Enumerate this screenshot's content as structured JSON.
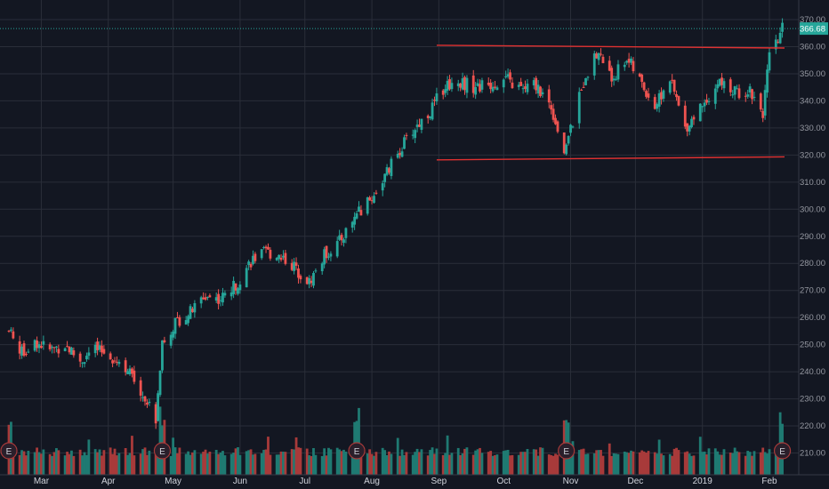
{
  "chart_data": {
    "type": "candlestick",
    "title": "",
    "xlabel": "",
    "ylabel": "",
    "grid": true,
    "ylim": [
      207,
      372
    ],
    "y_ticks": [
      "370.00",
      "360.00",
      "350.00",
      "340.00",
      "330.00",
      "320.00",
      "310.00",
      "300.00",
      "290.00",
      "280.00",
      "270.00",
      "260.00",
      "250.00",
      "240.00",
      "230.00",
      "220.00",
      "210.00"
    ],
    "x_ticks": [
      "Mar",
      "Apr",
      "May",
      "Jun",
      "Jul",
      "Aug",
      "Sep",
      "Oct",
      "Nov",
      "Dec",
      "2019",
      "Feb"
    ],
    "last_price": "366.68",
    "price_path": [
      [
        "2018-02-14",
        255
      ],
      [
        "2018-02-20",
        247
      ],
      [
        "2018-02-27",
        251
      ],
      [
        "2018-03-05",
        248
      ],
      [
        "2018-03-12",
        250
      ],
      [
        "2018-03-19",
        244
      ],
      [
        "2018-03-26",
        248
      ],
      [
        "2018-04-02",
        246
      ],
      [
        "2018-04-09",
        242
      ],
      [
        "2018-04-16",
        233
      ],
      [
        "2018-04-23",
        223
      ],
      [
        "2018-04-26",
        251
      ],
      [
        "2018-05-02",
        258
      ],
      [
        "2018-05-09",
        262
      ],
      [
        "2018-05-16",
        268
      ],
      [
        "2018-05-23",
        267
      ],
      [
        "2018-05-30",
        272
      ],
      [
        "2018-06-06",
        281
      ],
      [
        "2018-06-13",
        284
      ],
      [
        "2018-06-20",
        283
      ],
      [
        "2018-06-27",
        278
      ],
      [
        "2018-07-03",
        273
      ],
      [
        "2018-07-10",
        283
      ],
      [
        "2018-07-17",
        288
      ],
      [
        "2018-07-24",
        297
      ],
      [
        "2018-07-31",
        303
      ],
      [
        "2018-08-07",
        312
      ],
      [
        "2018-08-14",
        322
      ],
      [
        "2018-08-21",
        330
      ],
      [
        "2018-08-28",
        336
      ],
      [
        "2018-09-04",
        346
      ],
      [
        "2018-09-11",
        347
      ],
      [
        "2018-09-18",
        345
      ],
      [
        "2018-09-25",
        346
      ],
      [
        "2018-10-02",
        348
      ],
      [
        "2018-10-09",
        344
      ],
      [
        "2018-10-16",
        346
      ],
      [
        "2018-10-23",
        338
      ],
      [
        "2018-10-29",
        321
      ],
      [
        "2018-11-02",
        332
      ],
      [
        "2018-11-08",
        350
      ],
      [
        "2018-11-14",
        358
      ],
      [
        "2018-11-20",
        348
      ],
      [
        "2018-11-27",
        356
      ],
      [
        "2018-12-04",
        346
      ],
      [
        "2018-12-10",
        338
      ],
      [
        "2018-12-17",
        348
      ],
      [
        "2018-12-24",
        330
      ],
      [
        "2019-01-02",
        340
      ],
      [
        "2019-01-09",
        347
      ],
      [
        "2019-01-16",
        343
      ],
      [
        "2019-01-23",
        344
      ],
      [
        "2019-01-29",
        336
      ],
      [
        "2019-02-01",
        356
      ],
      [
        "2019-02-05",
        362
      ],
      [
        "2019-02-07",
        366.68
      ]
    ],
    "earnings_markers": [
      "2018-02-14",
      "2018-04-26",
      "2018-07-25",
      "2018-10-30",
      "2019-02-07"
    ],
    "earnings_label": "E",
    "trend_lines": [
      {
        "from": [
          "2018-08-31",
          360.5
        ],
        "to": [
          "2019-02-08",
          359.5
        ],
        "color": "#e03131"
      },
      {
        "from": [
          "2018-08-31",
          318.2
        ],
        "to": [
          "2019-02-08",
          319.3
        ],
        "color": "#e03131"
      }
    ],
    "colors": {
      "up": "#26a69a",
      "down": "#ef5350",
      "vol_up": "#1f7a72",
      "vol_down": "#a83a3a",
      "grid": "#2a2e39",
      "background": "#131722",
      "last_price_line": "#26a69a"
    }
  }
}
